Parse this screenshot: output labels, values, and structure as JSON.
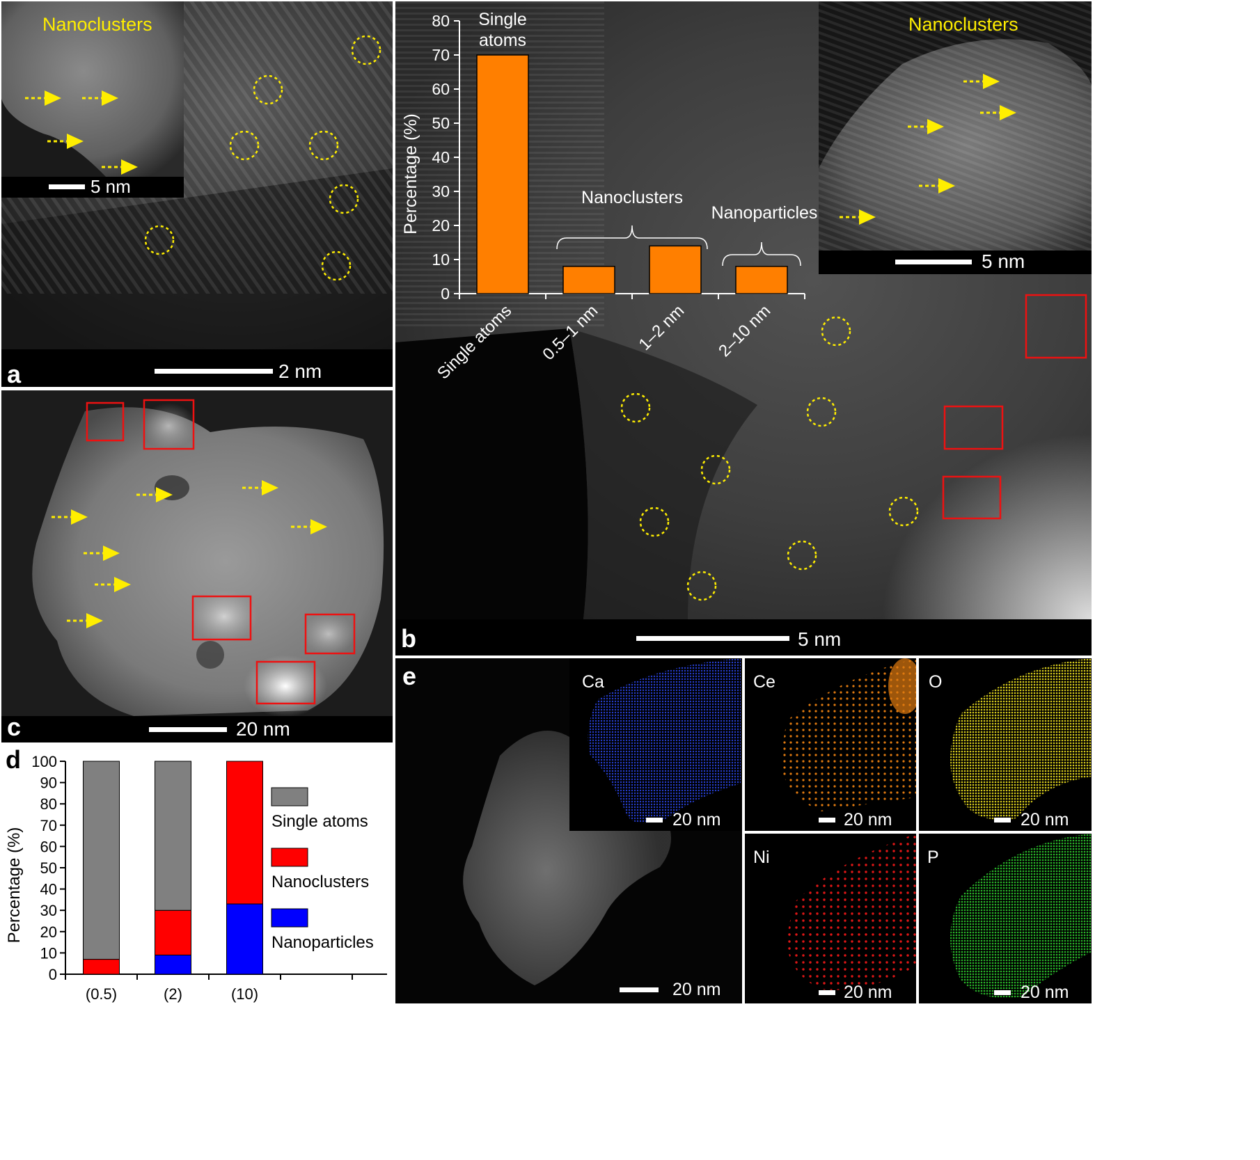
{
  "panels": {
    "a": {
      "label": "a",
      "scale_bar": "2 nm",
      "inset": {
        "title": "Nanoclusters",
        "scale_bar": "5 nm"
      }
    },
    "b": {
      "label": "b",
      "scale_bar": "5 nm",
      "inset": {
        "title": "Nanoclusters",
        "scale_bar": "5 nm"
      }
    },
    "c": {
      "label": "c",
      "scale_bar": "20 nm"
    },
    "d": {
      "label": "d"
    },
    "e": {
      "label": "e",
      "scale_bar": "20 nm",
      "maps": [
        {
          "element": "Ca",
          "scale_bar": "20 nm",
          "color": "#2a45e8"
        },
        {
          "element": "Ce",
          "scale_bar": "20 nm",
          "color": "#e07a10"
        },
        {
          "element": "O",
          "scale_bar": "20 nm",
          "color": "#d8cc1c"
        },
        {
          "element": "Ni",
          "scale_bar": "20 nm",
          "color": "#e01616"
        },
        {
          "element": "P",
          "scale_bar": "20 nm",
          "color": "#28b428"
        }
      ]
    }
  },
  "chart_data": [
    {
      "type": "bar",
      "ylabel": "Percentage (%)",
      "ylim": [
        0,
        80
      ],
      "yticks": [
        "0",
        "10",
        "20",
        "30",
        "40",
        "50",
        "60",
        "70",
        "80"
      ],
      "categories": [
        "Single atoms",
        "0.5–1 nm",
        "1–2 nm",
        "2–10 nm"
      ],
      "values": [
        70,
        8,
        14,
        8
      ],
      "color": "#ff7f00",
      "annotations": [
        {
          "text": "Single atoms",
          "lines": [
            "Single",
            "atoms"
          ],
          "over": [
            "Single atoms"
          ]
        },
        {
          "text": "Nanoclusters",
          "over": [
            "0.5–1 nm",
            "1–2 nm"
          ]
        },
        {
          "text": "Nanoparticles",
          "over": [
            "2–10 nm"
          ]
        }
      ]
    },
    {
      "type": "bar",
      "stacked": true,
      "ylabel": "Percentage (%)",
      "ylim": [
        0,
        100
      ],
      "yticks": [
        "0",
        "10",
        "20",
        "30",
        "40",
        "50",
        "60",
        "70",
        "80",
        "90",
        "100"
      ],
      "categories": [
        "(0.5)",
        "(2)",
        "(10)"
      ],
      "series": [
        {
          "name": "Nanoparticles",
          "color": "#0000ff",
          "values": [
            0,
            9,
            33
          ]
        },
        {
          "name": "Nanoclusters",
          "color": "#ff0000",
          "values": [
            7,
            21,
            67
          ]
        },
        {
          "name": "Single atoms",
          "color": "#808080",
          "values": [
            93,
            70,
            0
          ]
        }
      ],
      "legend": "right"
    }
  ]
}
